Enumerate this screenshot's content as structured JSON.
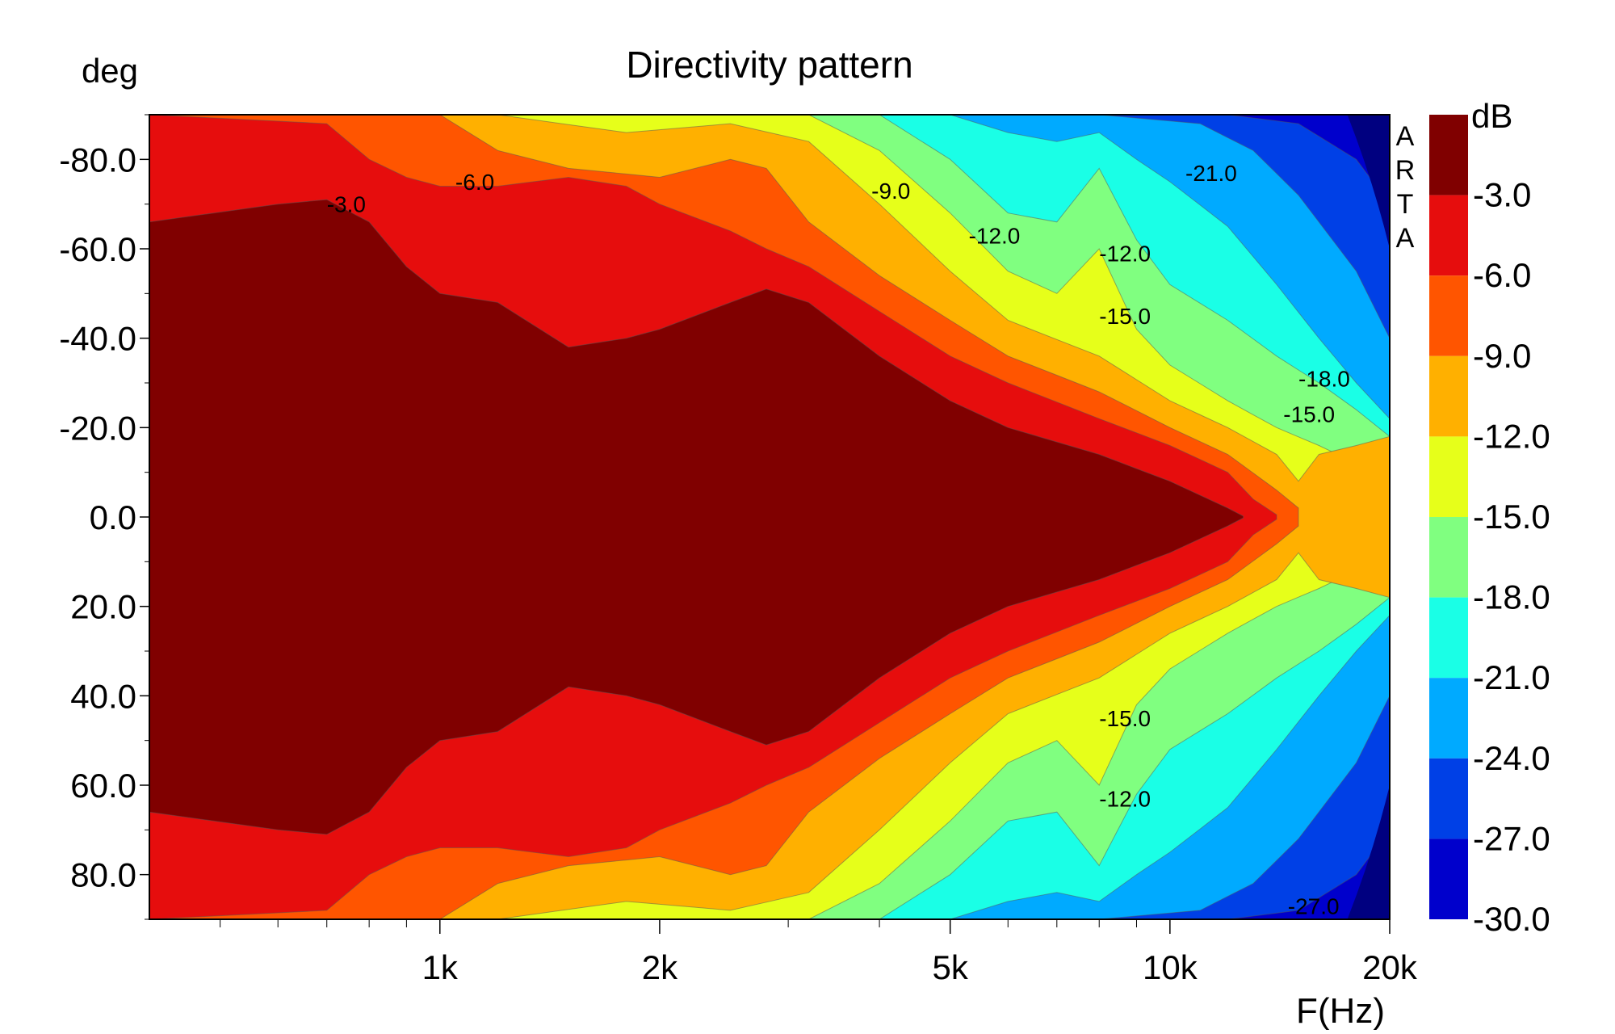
{
  "chart_data": {
    "type": "heatmap",
    "title": "Directivity pattern",
    "xlabel": "F(Hz)",
    "ylabel": "deg",
    "colorbar_label": "dB",
    "watermark": "ARTA",
    "x_scale": "log",
    "xlim": [
      400,
      20000
    ],
    "ylim": [
      -90,
      90
    ],
    "y_inverted": true,
    "x_ticks": [
      "1k",
      "2k",
      "5k",
      "10k",
      "20k"
    ],
    "x_tick_values": [
      1000,
      2000,
      5000,
      10000,
      20000
    ],
    "y_ticks": [
      "-80.0",
      "-60.0",
      "-40.0",
      "-20.0",
      "0.0",
      "20.0",
      "40.0",
      "60.0",
      "80.0"
    ],
    "y_tick_values": [
      -80,
      -60,
      -40,
      -20,
      0,
      20,
      40,
      60,
      80
    ],
    "levels": [
      {
        "label": "-3.0",
        "color": "#800000"
      },
      {
        "label": "-6.0",
        "color": "#e60d0d"
      },
      {
        "label": "-9.0",
        "color": "#ff5500"
      },
      {
        "label": "-12.0",
        "color": "#ffb000"
      },
      {
        "label": "-15.0",
        "color": "#e6ff1a"
      },
      {
        "label": "-18.0",
        "color": "#80ff80"
      },
      {
        "label": "-21.0",
        "color": "#1affe6"
      },
      {
        "label": "-24.0",
        "color": "#00aaff"
      },
      {
        "label": "-27.0",
        "color": "#0040e6"
      },
      {
        "label": "-30.0",
        "color": "#0000cc"
      }
    ],
    "deepest_color": "#000080",
    "contour_labels": [
      {
        "text": "-3.0",
        "freq": 700,
        "deg": -70
      },
      {
        "text": "-6.0",
        "freq": 1050,
        "deg": -75
      },
      {
        "text": "-9.0",
        "freq": 3900,
        "deg": -73
      },
      {
        "text": "-12.0",
        "freq": 5300,
        "deg": -63
      },
      {
        "text": "-12.0",
        "freq": 8000,
        "deg": -59
      },
      {
        "text": "-15.0",
        "freq": 8000,
        "deg": -45
      },
      {
        "text": "-21.0",
        "freq": 10500,
        "deg": -77
      },
      {
        "text": "-18.0",
        "freq": 15000,
        "deg": -31
      },
      {
        "text": "-15.0",
        "freq": 14300,
        "deg": -23
      },
      {
        "text": "-15.0",
        "freq": 8000,
        "deg": 45
      },
      {
        "text": "-12.0",
        "freq": 8000,
        "deg": 63
      },
      {
        "text": "-27.0",
        "freq": 14500,
        "deg": 87
      }
    ]
  }
}
